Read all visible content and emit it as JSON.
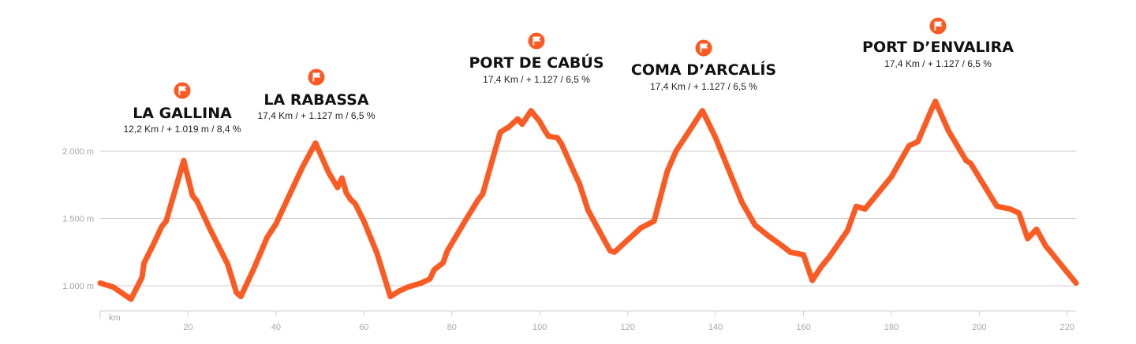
{
  "chart_data": {
    "type": "line",
    "x_unit_label": "km",
    "x_ticks": [
      20,
      40,
      60,
      80,
      100,
      120,
      140,
      160,
      180,
      200,
      220
    ],
    "xlim": [
      0,
      222
    ],
    "y_ticks": [
      {
        "value": 1000,
        "label": "1.000 m"
      },
      {
        "value": 1500,
        "label": "1.500 m"
      },
      {
        "value": 2000,
        "label": "2.000 m"
      }
    ],
    "ylim": [
      780,
      2740
    ],
    "grid": true,
    "line_color": "#fb5a22",
    "icon_color": "#fb5a22",
    "series": [
      {
        "x": [
          0,
          3,
          7,
          9.5,
          10,
          12,
          14,
          15,
          19,
          21,
          22,
          25,
          29,
          31,
          32,
          35,
          38,
          40,
          43,
          46,
          49,
          52,
          54,
          55,
          56,
          57,
          58,
          60,
          63,
          66,
          68,
          70,
          73,
          75,
          76,
          78,
          79,
          83,
          86,
          87,
          91,
          92,
          93,
          95,
          96,
          98,
          100,
          101,
          102,
          104,
          105,
          108,
          109,
          111,
          113,
          116,
          117,
          120,
          123,
          126,
          129,
          131,
          134,
          137,
          140,
          143,
          146,
          149,
          152,
          155,
          157,
          160,
          162,
          164,
          166,
          170,
          172,
          174,
          176,
          178,
          180,
          184,
          186,
          189,
          190,
          193,
          197,
          198,
          201,
          204,
          207,
          209,
          211,
          213,
          215,
          218,
          222
        ],
        "y": [
          1020,
          990,
          900,
          1060,
          1170,
          1300,
          1440,
          1480,
          1930,
          1670,
          1630,
          1420,
          1160,
          950,
          920,
          1130,
          1360,
          1460,
          1670,
          1880,
          2060,
          1840,
          1730,
          1800,
          1690,
          1640,
          1610,
          1480,
          1240,
          920,
          960,
          990,
          1020,
          1050,
          1120,
          1170,
          1260,
          1480,
          1640,
          1680,
          2140,
          2160,
          2180,
          2240,
          2200,
          2300,
          2220,
          2160,
          2110,
          2100,
          2050,
          1830,
          1760,
          1560,
          1440,
          1260,
          1250,
          1340,
          1430,
          1480,
          1850,
          2000,
          2150,
          2300,
          2100,
          1860,
          1620,
          1450,
          1370,
          1300,
          1250,
          1230,
          1040,
          1140,
          1220,
          1410,
          1590,
          1570,
          1650,
          1730,
          1810,
          2040,
          2070,
          2300,
          2370,
          2150,
          1930,
          1910,
          1750,
          1590,
          1570,
          1540,
          1350,
          1420,
          1300,
          1180,
          1020
        ]
      }
    ],
    "peaks": [
      {
        "name": "LA GALLINA",
        "stats": "12,2 Km / + 1.019 m / 8,4 %",
        "icon": "flag-icon",
        "km": 19
      },
      {
        "name": "LA RABASSA",
        "stats": "17,4 Km / + 1.127 m / 6,5 %",
        "icon": "flag-icon",
        "km": 49
      },
      {
        "name": "PORT DE CABÚS",
        "stats": "17,4 Km / + 1.127 / 6,5 %",
        "icon": "flag-icon",
        "km": 100
      },
      {
        "name": "COMA D’ARCALÍS",
        "stats": "17,4 Km / + 1.127 / 6,5 %",
        "icon": "flag-icon",
        "km": 137
      },
      {
        "name": "PORT D’ENVALIRA",
        "stats": "17,4 Km / + 1.127 / 6,5 %",
        "icon": "flag-icon",
        "km": 190
      }
    ]
  }
}
